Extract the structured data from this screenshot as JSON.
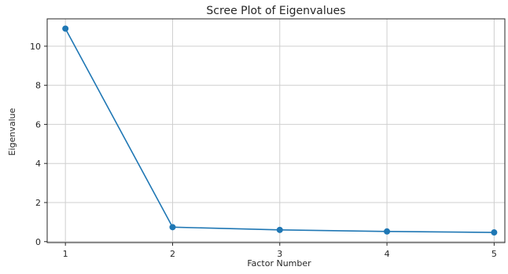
{
  "chart_data": {
    "type": "line",
    "title": "Scree Plot of Eigenvalues",
    "xlabel": "Factor Number",
    "ylabel": "Eigenvalue",
    "x": [
      1,
      2,
      3,
      4,
      5
    ],
    "xticks": [
      "1",
      "2",
      "3",
      "4",
      "5"
    ],
    "yticks": [
      "0",
      "2",
      "4",
      "6",
      "8",
      "10"
    ],
    "xlim": [
      0.83,
      5.1
    ],
    "ylim": [
      -0.05,
      11.4
    ],
    "grid": true,
    "markers": "circle",
    "series": [
      {
        "values": [
          10.9,
          0.74,
          0.6,
          0.52,
          0.47
        ],
        "color": "#1f77b4"
      }
    ]
  }
}
